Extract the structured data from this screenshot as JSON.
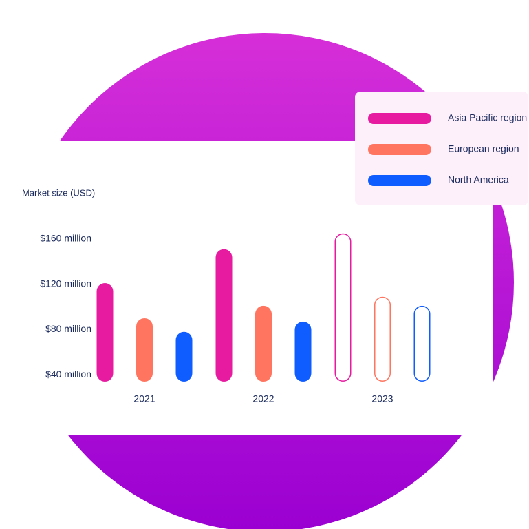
{
  "chart_data": {
    "type": "bar",
    "title": "Market size (USD)",
    "categories": [
      "2021",
      "2022",
      "2023"
    ],
    "hollow": [
      false,
      false,
      true
    ],
    "series": [
      {
        "name": "Asia Pacific region",
        "color": "#e61ba0",
        "values": [
          121,
          151,
          165
        ]
      },
      {
        "name": "European region",
        "color": "#ff7560",
        "values": [
          90,
          101,
          109
        ]
      },
      {
        "name": "North America",
        "color": "#0f5cff",
        "values": [
          78,
          87,
          101
        ]
      }
    ],
    "ylim": [
      34,
      170
    ],
    "yticks": [
      {
        "value": 40,
        "label": "$40 million"
      },
      {
        "value": 80,
        "label": "$80 million"
      },
      {
        "value": 120,
        "label": "$120 million"
      },
      {
        "value": 160,
        "label": "$160 million"
      }
    ],
    "grid": false,
    "legend": "top-right"
  }
}
